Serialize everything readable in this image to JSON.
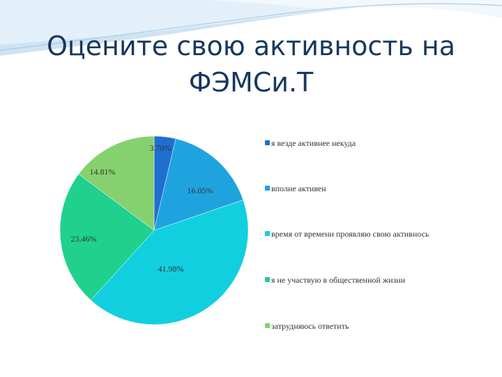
{
  "title": {
    "line1": "Оцените свою активность на",
    "line2": "ФЭМСи.Т"
  },
  "colors": {
    "header_wave_1": "#b9d7ee",
    "header_wave_2": "#e6f2fb",
    "title": "#17375e"
  },
  "chart_data": {
    "type": "pie",
    "title": "",
    "start_angle_deg": 0,
    "direction": "clockwise",
    "legend_position": "right",
    "slices": [
      {
        "label": "я везде активнее некуда",
        "value": 3.7,
        "data_label": "3.70%",
        "color": "#1f6fcf"
      },
      {
        "label": "вполне активен",
        "value": 16.05,
        "data_label": "16.05%",
        "color": "#1fa3df"
      },
      {
        "label": "время от времени проявляю свою активнось",
        "value": 41.98,
        "data_label": "41.98%",
        "color": "#12cfe0"
      },
      {
        "label": "я не участвую в общественной жизни",
        "value": 23.46,
        "data_label": "23.46%",
        "color": "#1fd18d"
      },
      {
        "label": "затрудняюсь ответить",
        "value": 14.81,
        "data_label": "14.81%",
        "color": "#86d16f"
      }
    ]
  }
}
